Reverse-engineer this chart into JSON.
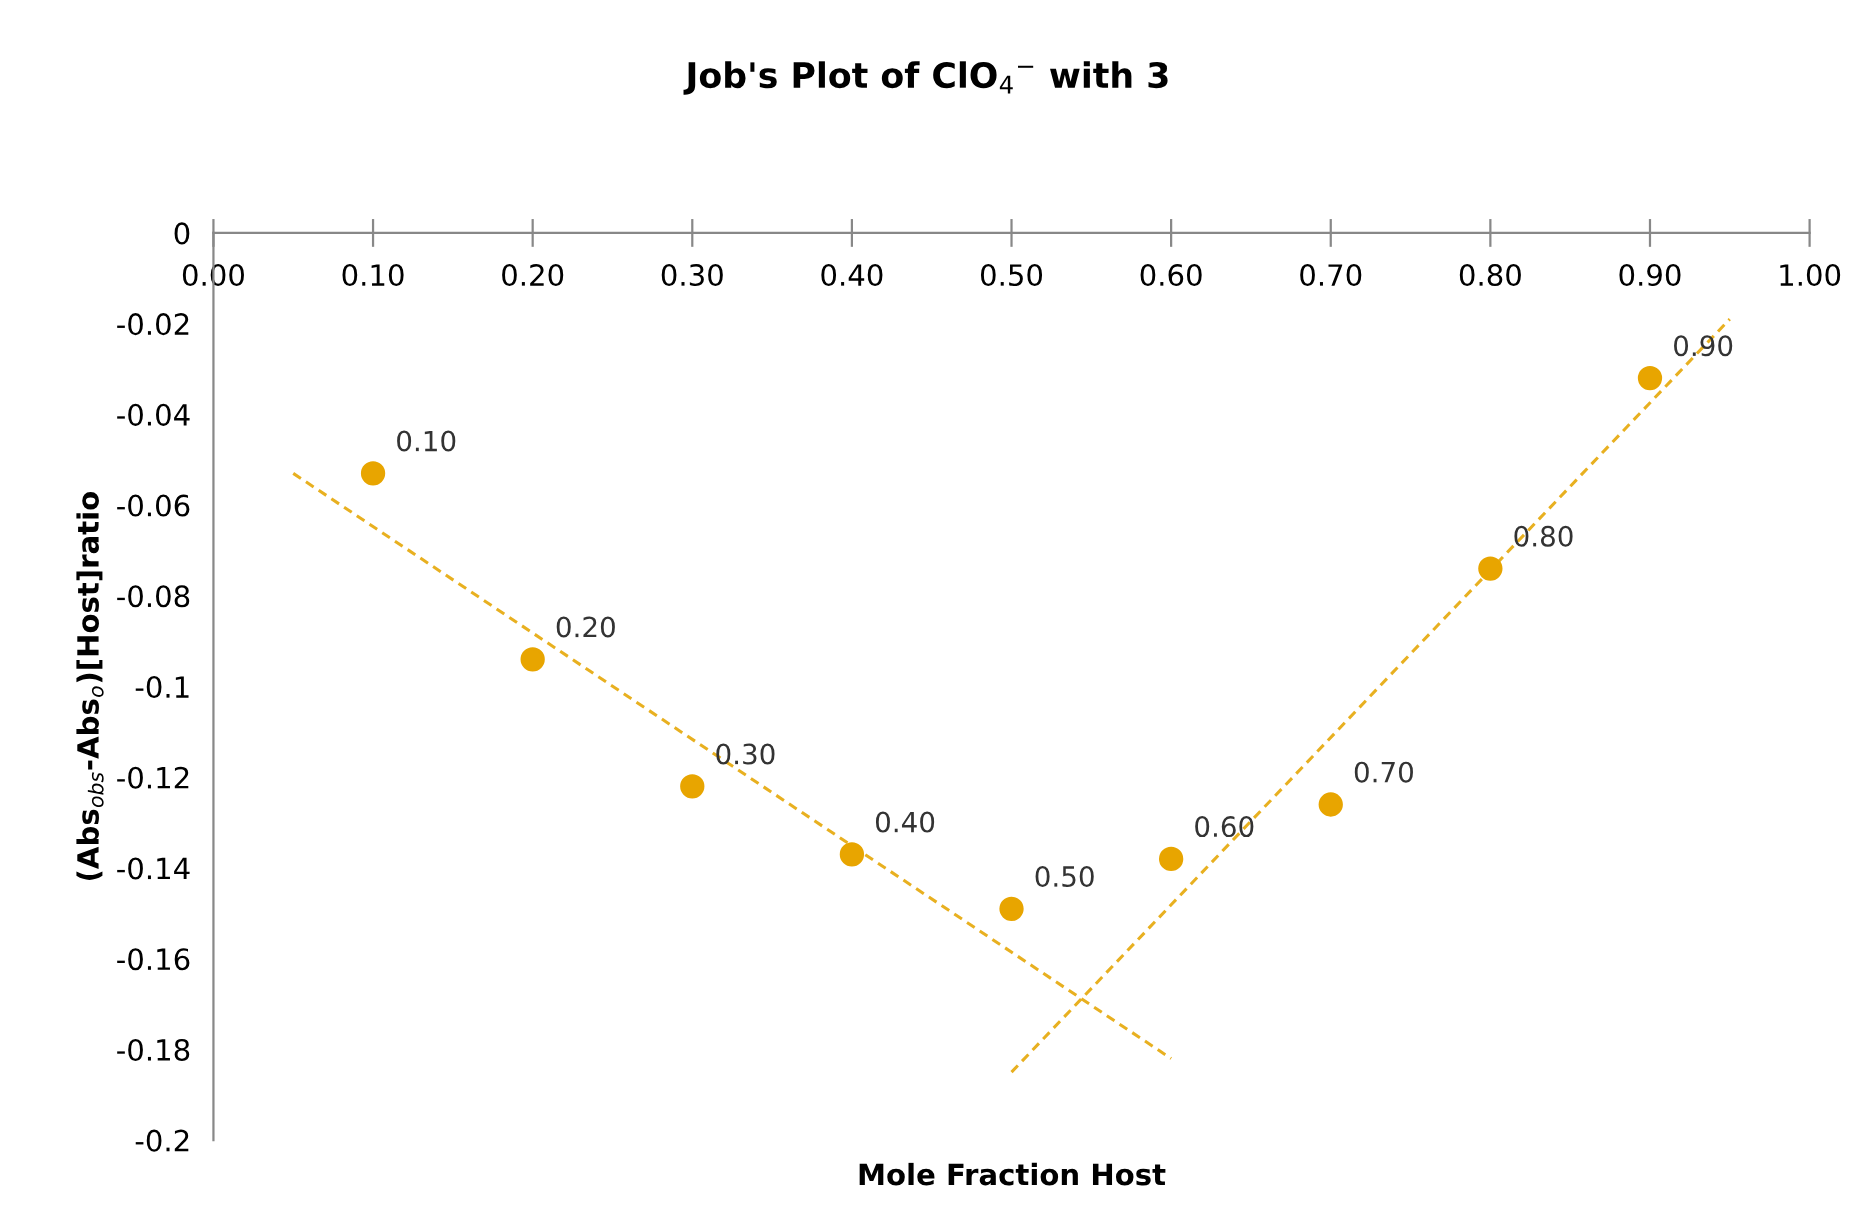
{
  "chart_data": {
    "type": "scatter",
    "title": "Job's Plot of ClO$_{4}$$^{−}$ with 3",
    "xlabel": "Mole Fraction Host",
    "ylabel": "(Abs$_{obs}$-Abs$_{o}$)[Host]ratio",
    "series": [
      {
        "color": "#e8a500",
        "marker": "circle",
        "x": [
          0.1,
          0.2,
          0.3,
          0.4,
          0.5,
          0.6,
          0.7,
          0.8,
          0.9
        ],
        "values": [
          -0.053,
          -0.094,
          -0.122,
          -0.137,
          -0.149,
          -0.138,
          -0.126,
          -0.074,
          -0.032
        ]
      },
      {
        "type": "line",
        "color": "#e8b020",
        "line_style": "dashed",
        "x": [
          0.05,
          0.6
        ],
        "values": [
          -0.053,
          -0.182
        ]
      },
      {
        "type": "line",
        "color": "#e8b020",
        "line_style": "dashed",
        "x": [
          0.5,
          0.95
        ],
        "values": [
          -0.185,
          -0.019
        ]
      }
    ],
    "xlim": [
      0,
      1
    ],
    "xticks": [
      {
        "value": 0,
        "label": "0.00"
      },
      {
        "value": 0.1,
        "label": "0.10"
      },
      {
        "value": 0.2,
        "label": "0.20"
      },
      {
        "value": 0.3,
        "label": "0.30"
      },
      {
        "value": 0.4,
        "label": "0.40"
      },
      {
        "value": 0.5,
        "label": "0.50"
      },
      {
        "value": 0.6,
        "label": "0.60"
      },
      {
        "value": 0.7,
        "label": "0.70"
      },
      {
        "value": 0.8,
        "label": "0.80"
      },
      {
        "value": 0.9,
        "label": "0.90"
      },
      {
        "value": 1,
        "label": "1.00"
      }
    ],
    "ylim": [
      -0.2,
      0
    ],
    "yticks": [
      0,
      -0.02,
      -0.04,
      -0.06,
      -0.08,
      {
        "value": -0.1,
        "label": "-0.1"
      },
      -0.12,
      -0.14,
      -0.16,
      -0.18,
      {
        "value": -0.2,
        "label": "-0.2"
      }
    ],
    "annotations": [
      {
        "text": "0.10",
        "x": 0.1,
        "y": -0.053
      },
      {
        "text": "0.20",
        "x": 0.2,
        "y": -0.094
      },
      {
        "text": "0.30",
        "x": 0.3,
        "y": -0.122
      },
      {
        "text": "0.40",
        "x": 0.4,
        "y": -0.137
      },
      {
        "text": "0.50",
        "x": 0.5,
        "y": -0.149
      },
      {
        "text": "0.60",
        "x": 0.6,
        "y": -0.138
      },
      {
        "text": "0.70",
        "x": 0.7,
        "y": -0.126
      },
      {
        "text": "0.80",
        "x": 0.8,
        "y": -0.074
      },
      {
        "text": "0.90",
        "x": 0.9,
        "y": -0.032
      }
    ],
    "grid": false,
    "legend": false
  }
}
